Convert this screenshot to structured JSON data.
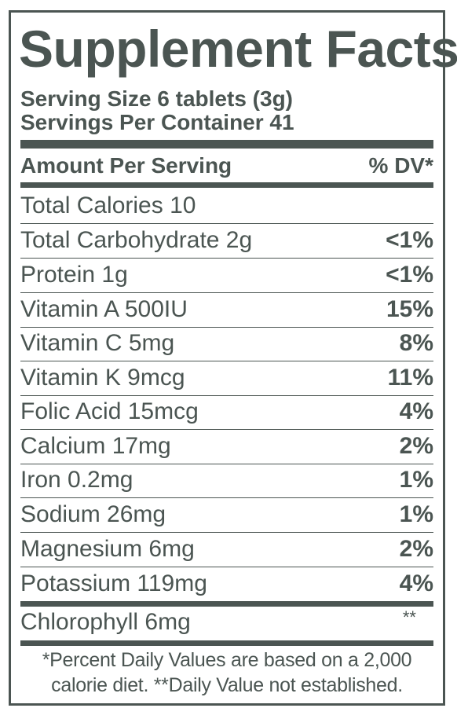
{
  "title": "Supplement Facts",
  "serving_size": "Serving Size 6 tablets (3g)",
  "servings_per_container": "Servings Per Container 41",
  "header": {
    "amount": "Amount Per Serving",
    "dv": "% DV*"
  },
  "nutrients": [
    {
      "name": "Total Calories 10",
      "dv": ""
    },
    {
      "name": "Total Carbohydrate 2g",
      "dv": "<1%"
    },
    {
      "name": "Protein 1g",
      "dv": "<1%"
    },
    {
      "name": "Vitamin A 500IU",
      "dv": "15%"
    },
    {
      "name": "Vitamin C 5mg",
      "dv": "8%"
    },
    {
      "name": "Vitamin K 9mcg",
      "dv": "11%"
    },
    {
      "name": "Folic Acid 15mcg",
      "dv": "4%"
    },
    {
      "name": "Calcium 17mg",
      "dv": "2%"
    },
    {
      "name": "Iron 0.2mg",
      "dv": "1%"
    },
    {
      "name": "Sodium 26mg",
      "dv": "1%"
    },
    {
      "name": "Magnesium 6mg",
      "dv": "2%"
    },
    {
      "name": "Potassium 119mg",
      "dv": "4%"
    }
  ],
  "other": {
    "name": "Chlorophyll 6mg",
    "dv": "**"
  },
  "footnote": {
    "line1": "*Percent Daily Values are based on a 2,000",
    "line2": "calorie diet. **Daily Value not established."
  },
  "colors": {
    "ink": "#4b5552",
    "background": "#ffffff"
  }
}
